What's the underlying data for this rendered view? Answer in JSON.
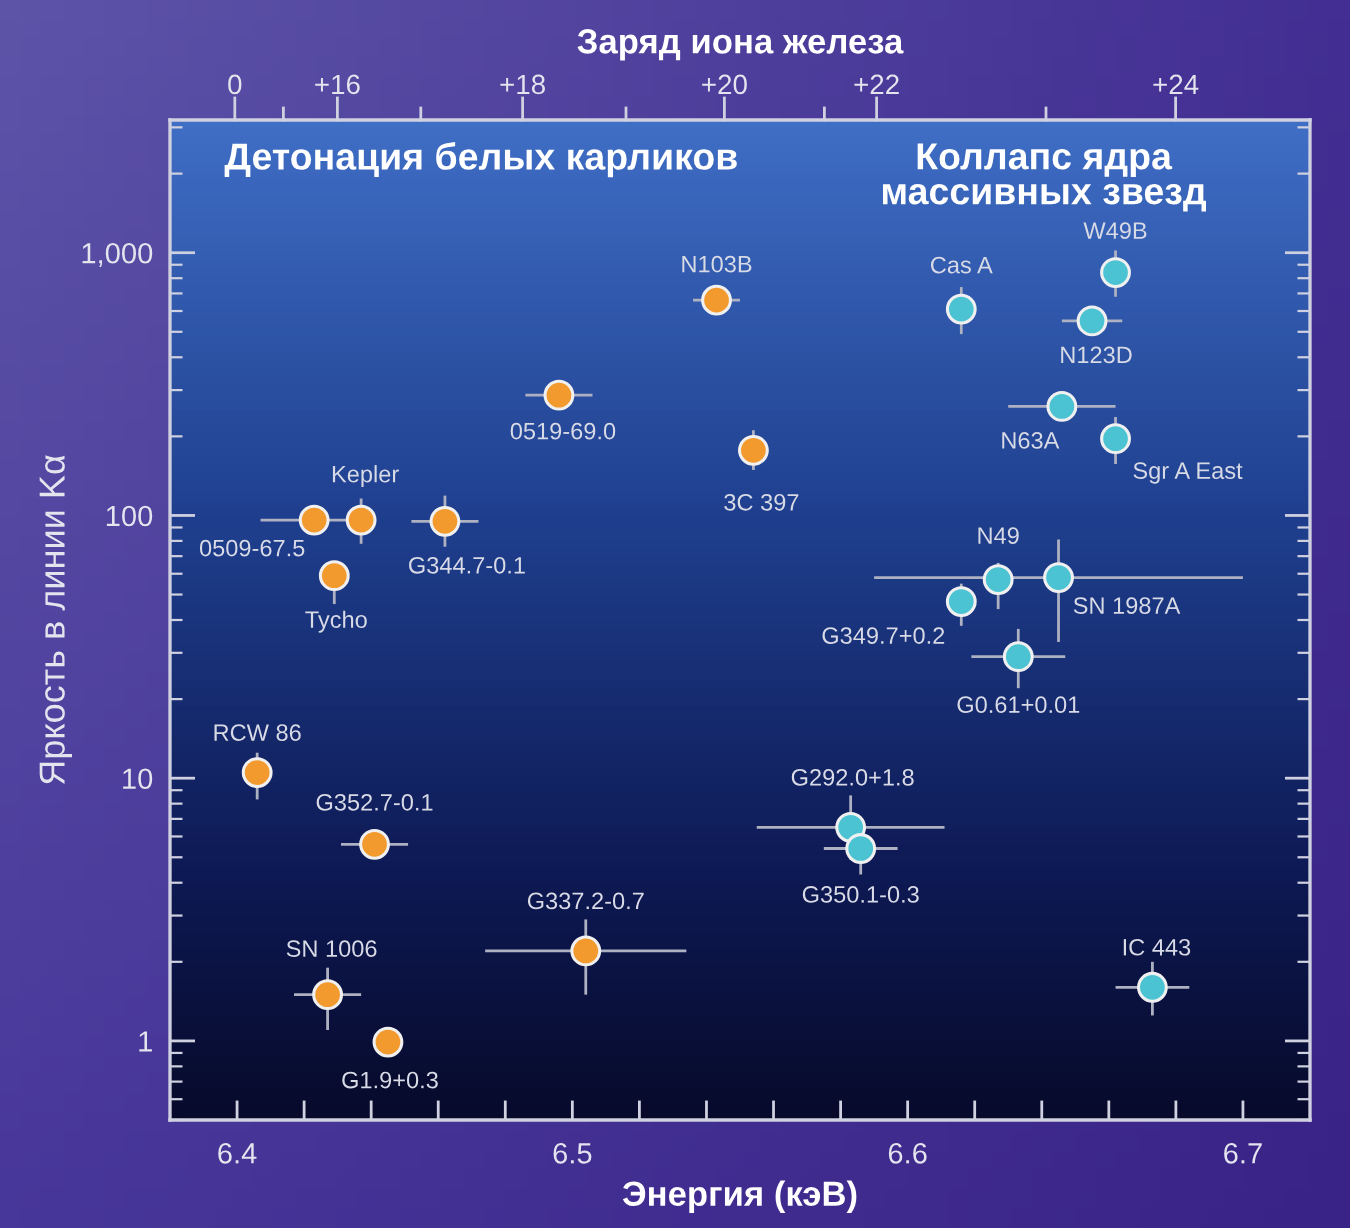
{
  "chart_data": {
    "type": "scatter",
    "xlabel": "Энергия (кэВ)",
    "ylabel": "Яркость в линии Kα",
    "x2label": "Заряд иона железа",
    "xlim": [
      6.38,
      6.72
    ],
    "xticks": [
      {
        "value": 6.4,
        "label": "6.4"
      },
      {
        "value": 6.42,
        "label": null
      },
      {
        "value": 6.44,
        "label": null
      },
      {
        "value": 6.46,
        "label": null
      },
      {
        "value": 6.48,
        "label": null
      },
      {
        "value": 6.5,
        "label": "6.5"
      },
      {
        "value": 6.52,
        "label": null
      },
      {
        "value": 6.54,
        "label": null
      },
      {
        "value": 6.56,
        "label": null
      },
      {
        "value": 6.58,
        "label": null
      },
      {
        "value": 6.6,
        "label": "6.6"
      },
      {
        "value": 6.62,
        "label": null
      },
      {
        "value": 6.64,
        "label": null
      },
      {
        "value": 6.66,
        "label": null
      },
      {
        "value": 6.68,
        "label": null
      },
      {
        "value": 6.7,
        "label": "6.7"
      }
    ],
    "ylim": [
      0.5,
      3200
    ],
    "yticks": [
      1,
      10,
      100,
      {
        "value": 1000,
        "label": "1,000"
      }
    ],
    "log": "y",
    "grid": false,
    "marker": "circle",
    "series": [
      {
        "name": "Детонация белых карликов",
        "color": "#f39a2e",
        "x": [
          6.423,
          6.437,
          6.429,
          6.462,
          6.496,
          6.543,
          6.554,
          6.406,
          6.441,
          6.427,
          6.445,
          6.504
        ],
        "values": [
          96,
          96,
          59,
          95,
          287,
          660,
          177,
          10.5,
          5.6,
          1.5,
          0.99,
          2.2
        ],
        "errors": [
          null,
          [
            78,
            116
          ],
          [
            46,
            66
          ],
          [
            76,
            119
          ],
          null,
          null,
          [
            149,
            211
          ],
          [
            8.3,
            12.5
          ],
          null,
          [
            1.1,
            1.9
          ],
          null,
          [
            1.5,
            2.9
          ]
        ],
        "xerrors": [
          0.016,
          null,
          null,
          0.01,
          0.01,
          0.007,
          null,
          null,
          0.01,
          0.01,
          null,
          0.03
        ]
      },
      {
        "name": "Коллапс ядра\nмассивных звезд",
        "color": "#4cc3d2",
        "x": [
          6.616,
          6.662,
          6.655,
          6.646,
          6.662,
          6.627,
          6.645,
          6.616,
          6.633,
          6.583,
          6.586,
          6.673
        ],
        "values": [
          610,
          840,
          550,
          260,
          196,
          57,
          58,
          47,
          29,
          6.5,
          5.4,
          1.6
        ],
        "errors": [
          [
            490,
            740
          ],
          [
            680,
            1020
          ],
          null,
          null,
          [
            157,
            237
          ],
          [
            44,
            66
          ],
          [
            33,
            81
          ],
          [
            38,
            55
          ],
          [
            22,
            37
          ],
          [
            4.9,
            8.6
          ],
          [
            4.3,
            6.9
          ],
          [
            1.25,
            2.0
          ]
        ],
        "xerrors": [
          null,
          null,
          0.009,
          0.016,
          null,
          null,
          0.055,
          null,
          0.014,
          0.028,
          0.011,
          0.011
        ]
      }
    ],
    "annotations": [
      {
        "text": "0509-67.5",
        "x": 6.423,
        "y": 96
      },
      {
        "text": "Kepler",
        "x": 6.437,
        "y": 96
      },
      {
        "text": "Tycho",
        "x": 6.429,
        "y": 59
      },
      {
        "text": "G344.7-0.1",
        "x": 6.462,
        "y": 95
      },
      {
        "text": "0519-69.0",
        "x": 6.496,
        "y": 287
      },
      {
        "text": "N103B",
        "x": 6.543,
        "y": 660
      },
      {
        "text": "3C 397",
        "x": 6.554,
        "y": 177
      },
      {
        "text": "RCW 86",
        "x": 6.406,
        "y": 10.5
      },
      {
        "text": "G352.7-0.1",
        "x": 6.441,
        "y": 5.6
      },
      {
        "text": "SN 1006",
        "x": 6.427,
        "y": 1.5
      },
      {
        "text": "G1.9+0.3",
        "x": 6.445,
        "y": 0.99
      },
      {
        "text": "G337.2-0.7",
        "x": 6.504,
        "y": 2.2
      },
      {
        "text": "Cas A",
        "x": 6.616,
        "y": 610
      },
      {
        "text": "W49B",
        "x": 6.662,
        "y": 840
      },
      {
        "text": "N123D",
        "x": 6.655,
        "y": 550
      },
      {
        "text": "N63A",
        "x": 6.646,
        "y": 260
      },
      {
        "text": "Sgr A East",
        "x": 6.662,
        "y": 196
      },
      {
        "text": "N49",
        "x": 6.627,
        "y": 57
      },
      {
        "text": "SN 1987A",
        "x": 6.645,
        "y": 58
      },
      {
        "text": "G349.7+0.2",
        "x": 6.616,
        "y": 47
      },
      {
        "text": "G0.61+0.01",
        "x": 6.633,
        "y": 29
      },
      {
        "text": "G292.0+1.8",
        "x": 6.583,
        "y": 6.5
      },
      {
        "text": "G350.1-0.3",
        "x": 6.586,
        "y": 5.4
      },
      {
        "text": "IC 443",
        "x": 6.673,
        "y": 1.6
      },
      "0",
      "+16",
      "+18",
      "+20",
      "+22",
      "+24"
    ]
  }
}
